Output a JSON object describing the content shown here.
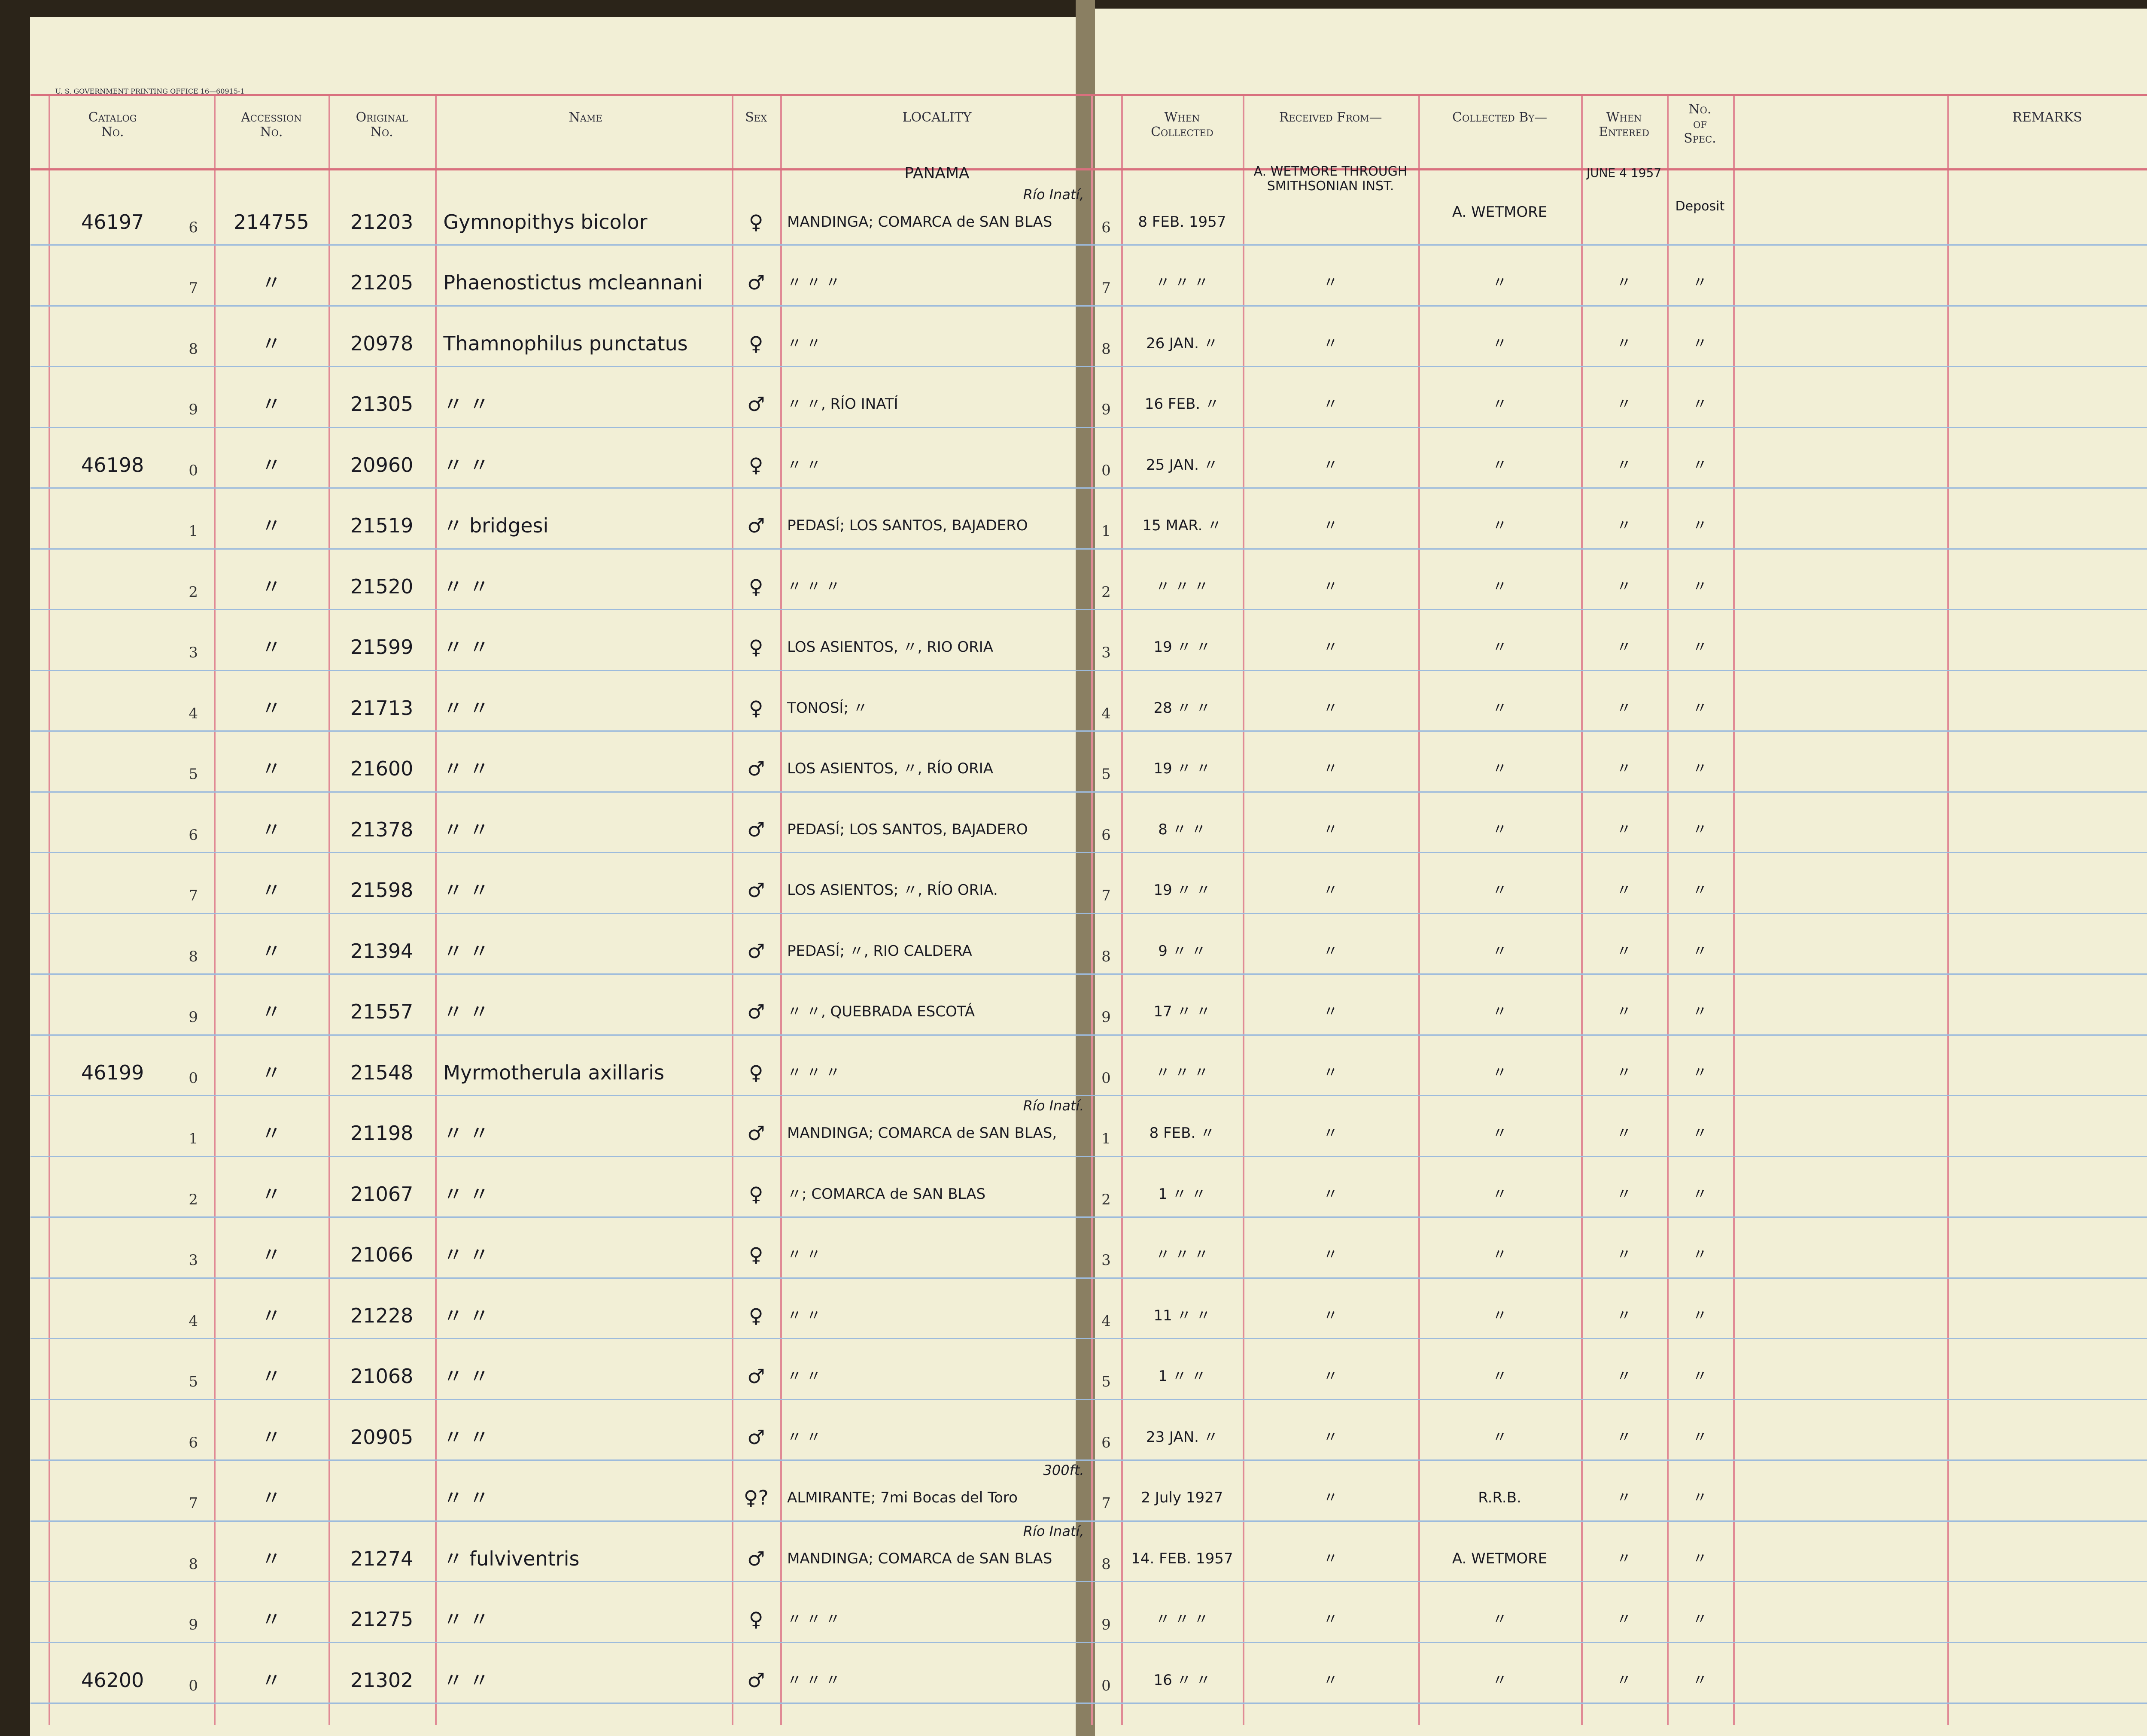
{
  "header": {
    "printer": "U. S. GOVERNMENT PRINTING OFFICE 16—60915-1",
    "columns": [
      "Catalog\nNo.",
      "Accession\nNo.",
      "Original\nNo.",
      "Name",
      "Sex",
      "LOCALITY",
      "When\nCollected",
      "Received From—",
      "Collected By—",
      "When\nEntered",
      "No.\nof\nSpec.",
      "REMARKS"
    ]
  },
  "rows": [
    {
      "digit": "6",
      "catalog": "46197",
      "accession": "214755",
      "original": "21203",
      "name": "Gymnopithys bicolor",
      "sex": "♀",
      "region": "PANAMA",
      "locality_note": "Río Inatí,",
      "locality": "MANDINGA; COMARCA de SAN BLAS",
      "collected": "8 FEB. 1957",
      "received": "A. WETMORE THROUGH SMITHSONIAN INST.",
      "collected_by": "A. WETMORE",
      "entered": "JUNE 4 1957",
      "spec": "Deposit"
    },
    {
      "digit": "7",
      "accession": "〃",
      "original": "21205",
      "name": "Phaenostictus mcleannani",
      "sex": "♂",
      "locality": "〃 〃 〃",
      "collected": "〃 〃 〃",
      "received": "〃",
      "collected_by": "〃",
      "entered": "〃",
      "spec": "〃"
    },
    {
      "digit": "8",
      "accession": "〃",
      "original": "20978",
      "name": "Thamnophilus punctatus",
      "sex": "♀",
      "locality": "〃 〃",
      "collected": "26 JAN. 〃",
      "received": "〃",
      "collected_by": "〃",
      "entered": "〃",
      "spec": "〃"
    },
    {
      "digit": "9",
      "accession": "〃",
      "original": "21305",
      "name": "〃 〃",
      "sex": "♂",
      "locality": "〃 〃, RÍO INATÍ",
      "collected": "16 FEB. 〃",
      "received": "〃",
      "collected_by": "〃",
      "entered": "〃",
      "spec": "〃"
    },
    {
      "digit": "0",
      "catalog": "46198",
      "accession": "〃",
      "original": "20960",
      "name": "〃 〃",
      "sex": "♀",
      "locality": "〃 〃",
      "collected": "25 JAN. 〃",
      "received": "〃",
      "collected_by": "〃",
      "entered": "〃",
      "spec": "〃"
    },
    {
      "digit": "1",
      "accession": "〃",
      "original": "21519",
      "name": "〃 bridgesi",
      "sex": "♂",
      "locality": "PEDASÍ; LOS SANTOS, BAJADERO",
      "collected": "15 MAR. 〃",
      "received": "〃",
      "collected_by": "〃",
      "entered": "〃",
      "spec": "〃"
    },
    {
      "digit": "2",
      "accession": "〃",
      "original": "21520",
      "name": "〃 〃",
      "sex": "♀",
      "locality": "〃 〃 〃",
      "collected": "〃 〃 〃",
      "received": "〃",
      "collected_by": "〃",
      "entered": "〃",
      "spec": "〃"
    },
    {
      "digit": "3",
      "accession": "〃",
      "original": "21599",
      "name": "〃 〃",
      "sex": "♀",
      "locality": "LOS ASIENTOS, 〃, RIO ORIA",
      "collected": "19 〃 〃",
      "received": "〃",
      "collected_by": "〃",
      "entered": "〃",
      "spec": "〃"
    },
    {
      "digit": "4",
      "accession": "〃",
      "original": "21713",
      "name": "〃 〃",
      "sex": "♀",
      "locality": "TONOSÍ; 〃",
      "collected": "28 〃 〃",
      "received": "〃",
      "collected_by": "〃",
      "entered": "〃",
      "spec": "〃"
    },
    {
      "digit": "5",
      "accession": "〃",
      "original": "21600",
      "name": "〃 〃",
      "sex": "♂",
      "locality": "LOS ASIENTOS, 〃, RÍO ORIA",
      "collected": "19 〃 〃",
      "received": "〃",
      "collected_by": "〃",
      "entered": "〃",
      "spec": "〃"
    },
    {
      "digit": "6",
      "accession": "〃",
      "original": "21378",
      "name": "〃 〃",
      "sex": "♂",
      "locality": "PEDASÍ; LOS SANTOS, BAJADERO",
      "collected": "8 〃 〃",
      "received": "〃",
      "collected_by": "〃",
      "entered": "〃",
      "spec": "〃"
    },
    {
      "digit": "7",
      "accession": "〃",
      "original": "21598",
      "name": "〃 〃",
      "sex": "♂",
      "locality": "LOS ASIENTOS; 〃, RÍO ORIA.",
      "collected": "19 〃 〃",
      "received": "〃",
      "collected_by": "〃",
      "entered": "〃",
      "spec": "〃"
    },
    {
      "digit": "8",
      "accession": "〃",
      "original": "21394",
      "name": "〃 〃",
      "sex": "♂",
      "locality": "PEDASÍ; 〃, RIO CALDERA",
      "collected": "9 〃 〃",
      "received": "〃",
      "collected_by": "〃",
      "entered": "〃",
      "spec": "〃"
    },
    {
      "digit": "9",
      "accession": "〃",
      "original": "21557",
      "name": "〃 〃",
      "sex": "♂",
      "locality": "〃 〃, QUEBRADA ESCOTÁ",
      "collected": "17 〃 〃",
      "received": "〃",
      "collected_by": "〃",
      "entered": "〃",
      "spec": "〃"
    },
    {
      "digit": "0",
      "catalog": "46199",
      "accession": "〃",
      "original": "21548",
      "name": "Myrmotherula axillaris",
      "sex": "♀",
      "locality": "〃 〃 〃",
      "collected": "〃 〃 〃",
      "received": "〃",
      "collected_by": "〃",
      "entered": "〃",
      "spec": "〃"
    },
    {
      "digit": "1",
      "accession": "〃",
      "original": "21198",
      "name": "〃 〃",
      "sex": "♂",
      "locality_note": "Río Inatí.",
      "locality": "MANDINGA; COMARCA de SAN BLAS,",
      "collected": "8 FEB. 〃",
      "received": "〃",
      "collected_by": "〃",
      "entered": "〃",
      "spec": "〃"
    },
    {
      "digit": "2",
      "accession": "〃",
      "original": "21067",
      "name": "〃 〃",
      "sex": "♀",
      "locality": "〃; COMARCA de SAN BLAS",
      "collected": "1 〃 〃",
      "received": "〃",
      "collected_by": "〃",
      "entered": "〃",
      "spec": "〃"
    },
    {
      "digit": "3",
      "accession": "〃",
      "original": "21066",
      "name": "〃 〃",
      "sex": "♀",
      "locality": "〃 〃",
      "collected": "〃 〃 〃",
      "received": "〃",
      "collected_by": "〃",
      "entered": "〃",
      "spec": "〃"
    },
    {
      "digit": "4",
      "accession": "〃",
      "original": "21228",
      "name": "〃 〃",
      "sex": "♀",
      "locality": "〃 〃",
      "collected": "11 〃 〃",
      "received": "〃",
      "collected_by": "〃",
      "entered": "〃",
      "spec": "〃"
    },
    {
      "digit": "5",
      "accession": "〃",
      "original": "21068",
      "name": "〃 〃",
      "sex": "♂",
      "locality": "〃 〃",
      "collected": "1 〃 〃",
      "received": "〃",
      "collected_by": "〃",
      "entered": "〃",
      "spec": "〃"
    },
    {
      "digit": "6",
      "accession": "〃",
      "original": "20905",
      "name": "〃 〃",
      "sex": "♂",
      "locality": "〃 〃",
      "collected": "23 JAN. 〃",
      "received": "〃",
      "collected_by": "〃",
      "entered": "〃",
      "spec": "〃"
    },
    {
      "digit": "7",
      "accession": "〃",
      "name": "〃 〃",
      "sex": "♀?",
      "locality_note": "300ft.",
      "locality": "ALMIRANTE; 7mi Bocas del Toro",
      "collected": "2 July 1927",
      "received": "〃",
      "collected_by": "R.R.B.",
      "entered": "〃",
      "spec": "〃"
    },
    {
      "digit": "8",
      "accession": "〃",
      "original": "21274",
      "name": "〃 fulviventris",
      "sex": "♂",
      "locality_note": "Río Inatí,",
      "locality": "MANDINGA; COMARCA de SAN BLAS",
      "collected": "14. FEB. 1957",
      "received": "〃",
      "collected_by": "A. WETMORE",
      "entered": "〃",
      "spec": "〃"
    },
    {
      "digit": "9",
      "accession": "〃",
      "original": "21275",
      "name": "〃 〃",
      "sex": "♀",
      "locality": "〃 〃 〃",
      "collected": "〃 〃 〃",
      "received": "〃",
      "collected_by": "〃",
      "entered": "〃",
      "spec": "〃"
    },
    {
      "digit": "0",
      "catalog": "46200",
      "accession": "〃",
      "original": "21302",
      "name": "〃 〃",
      "sex": "♂",
      "locality": "〃 〃 〃",
      "collected": "16 〃 〃",
      "received": "〃",
      "collected_by": "〃",
      "entered": "〃",
      "spec": "〃"
    }
  ]
}
